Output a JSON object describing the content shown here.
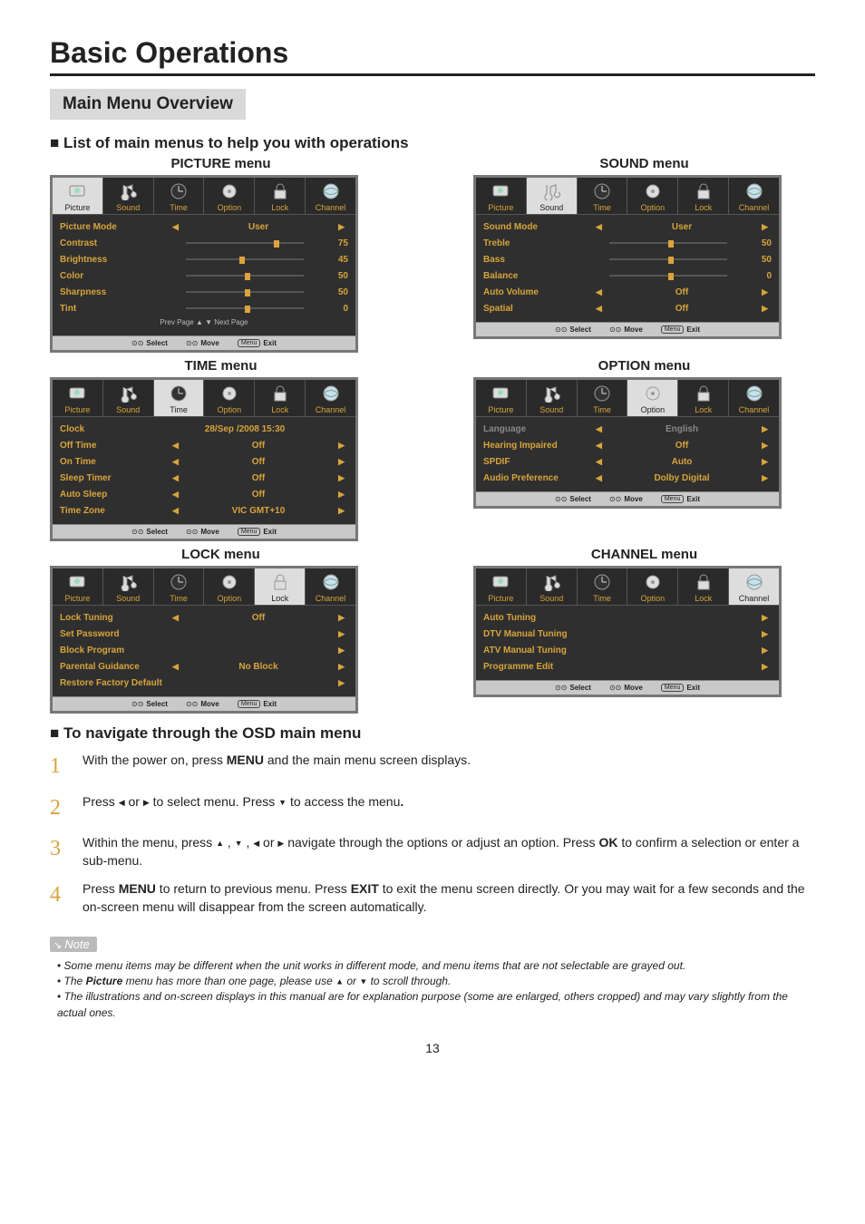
{
  "page": {
    "title": "Basic Operations",
    "overview": "Main Menu Overview",
    "listHead": "List of main menus to help you with operations",
    "navHead": "To navigate through the OSD main menu",
    "pageNum": "13"
  },
  "tabs": {
    "labels": [
      "Picture",
      "Sound",
      "Time",
      "Option",
      "Lock",
      "Channel"
    ],
    "hi": "#d7a43b"
  },
  "menus": {
    "picture": {
      "title": "PICTURE menu",
      "activeTab": 0,
      "rows": [
        {
          "label": "Picture Mode",
          "type": "select",
          "value": "User"
        },
        {
          "label": "Contrast",
          "type": "slider",
          "value": 75,
          "pos": 0.75
        },
        {
          "label": "Brightness",
          "type": "slider",
          "value": 45,
          "pos": 0.45
        },
        {
          "label": "Color",
          "type": "slider",
          "value": 50,
          "pos": 0.5
        },
        {
          "label": "Sharpness",
          "type": "slider",
          "value": 50,
          "pos": 0.5
        },
        {
          "label": "Tint",
          "type": "slider",
          "value": 0,
          "pos": 0.5
        }
      ],
      "pager": "Prev  Page ▲   ▼ Next  Page"
    },
    "sound": {
      "title": "SOUND menu",
      "activeTab": 1,
      "rows": [
        {
          "label": "Sound Mode",
          "type": "select",
          "value": "User"
        },
        {
          "label": "Treble",
          "type": "slider",
          "value": 50,
          "pos": 0.5
        },
        {
          "label": "Bass",
          "type": "slider",
          "value": 50,
          "pos": 0.5
        },
        {
          "label": "Balance",
          "type": "slider",
          "value": 0,
          "pos": 0.5
        },
        {
          "label": "Auto Volume",
          "type": "select",
          "value": "Off"
        },
        {
          "label": "Spatial",
          "type": "select",
          "value": "Off"
        }
      ]
    },
    "time": {
      "title": "TIME menu",
      "activeTab": 2,
      "rows": [
        {
          "label": "Clock",
          "type": "text",
          "value": "28/Sep  /2008 15:30",
          "noarrows": true
        },
        {
          "label": "Off Time",
          "type": "select",
          "value": "Off"
        },
        {
          "label": "On Time",
          "type": "select",
          "value": "Off"
        },
        {
          "label": "Sleep Timer",
          "type": "select",
          "value": "Off"
        },
        {
          "label": "Auto Sleep",
          "type": "select",
          "value": "Off"
        },
        {
          "label": "Time Zone",
          "type": "select",
          "value": "VIC GMT+10"
        }
      ]
    },
    "option": {
      "title": "OPTION menu",
      "activeTab": 3,
      "rows": [
        {
          "label": "Language",
          "type": "select",
          "value": "English",
          "gray": true
        },
        {
          "label": "Hearing Impaired",
          "type": "select",
          "value": "Off"
        },
        {
          "label": "SPDIF",
          "type": "select",
          "value": "Auto"
        },
        {
          "label": "Audio Preference",
          "type": "select",
          "value": "Dolby Digital"
        }
      ]
    },
    "lock": {
      "title": "LOCK menu",
      "activeTab": 4,
      "rows": [
        {
          "label": "Lock Tuning",
          "type": "select",
          "value": "Off"
        },
        {
          "label": "Set Password",
          "type": "link"
        },
        {
          "label": "Block Program",
          "type": "link"
        },
        {
          "label": "Parental Guidance",
          "type": "select",
          "value": "No Block"
        },
        {
          "label": "Restore Factory Default",
          "type": "link"
        }
      ]
    },
    "channel": {
      "title": "CHANNEL menu",
      "activeTab": 5,
      "rows": [
        {
          "label": "Auto Tuning",
          "type": "link"
        },
        {
          "label": "DTV Manual Tuning",
          "type": "link"
        },
        {
          "label": "ATV Manual Tuning",
          "type": "link"
        },
        {
          "label": "Programme Edit",
          "type": "link"
        }
      ]
    }
  },
  "foot": {
    "select": "Select",
    "move": "Move",
    "menu": "Menu",
    "exit": "Exit"
  },
  "steps": [
    {
      "n": "1",
      "html": "With the power on, press <strong class='kb'>MENU</strong> and the main menu screen displays."
    },
    {
      "n": "2",
      "html": "Press <span class='tri'>◀</span> or <span class='tri'>▶</span> to select menu.  Press <span class='tri'>▼</span>  to access the menu<strong>.</strong>"
    },
    {
      "n": "3",
      "html": "Within the menu, press <span class='tri'>▲</span> , <span class='tri'>▼</span> , <span class='tri'>◀</span> or <span class='tri'>▶</span> navigate through the options or adjust an option. Press <strong class='kb'>OK</strong> to confirm a selection or enter a sub-menu."
    },
    {
      "n": "4",
      "html": "Press <strong class='kb'>MENU</strong> to return to previous menu. Press <strong class='kb'>EXIT</strong> to exit the menu screen directly. Or you may wait for a few seconds and the on-screen menu will disappear from the screen automatically."
    }
  ],
  "note": {
    "label": "Note",
    "items": [
      "Some menu items may be different when the unit works in different mode, and menu items that are not selectable are grayed out.",
      "The <strong style='font-style:italic'>Picture</strong> menu has more than one page, please use <span class='tri'>▲</span> or <span class='tri'>▼</span> to scroll through.",
      "The illustrations and on-screen displays in this manual are for explanation purpose (some are enlarged, others cropped) and may vary slightly from the actual ones."
    ]
  }
}
